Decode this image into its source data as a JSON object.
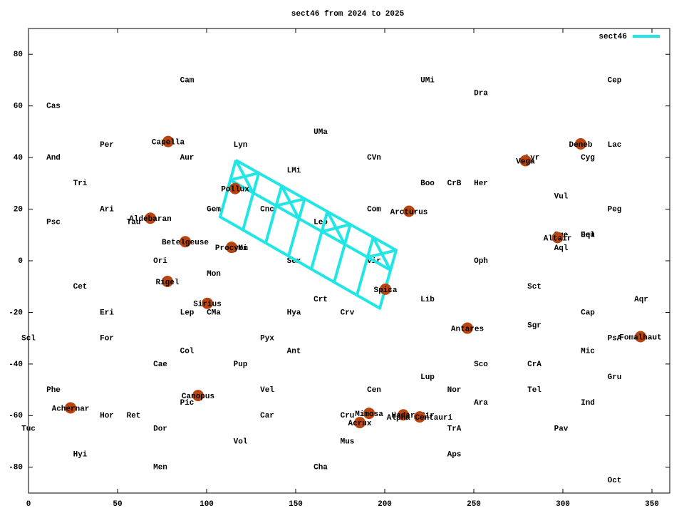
{
  "chart_data": {
    "type": "scatter",
    "title": "sect46 from 2024 to 2025",
    "xlim": [
      0,
      360
    ],
    "ylim": [
      -90,
      90
    ],
    "xticks": [
      0,
      50,
      100,
      150,
      200,
      250,
      300,
      350
    ],
    "yticks": [
      -80,
      -60,
      -40,
      -20,
      0,
      20,
      40,
      60,
      80
    ],
    "legend": "upper right",
    "series": [
      {
        "name": "sect46",
        "color": "#22e5e5",
        "x": [
          116.4,
          206.4,
          197.2,
          107.6,
          116.4,
          null,
          113.3,
          203.2,
          null,
          129.3,
          120.4,
          null,
          142.1,
          133.2,
          null,
          155.0,
          146.0,
          null,
          167.8,
          158.8,
          null,
          180.7,
          171.6,
          null,
          193.5,
          184.4,
          null,
          116.4,
          126.1,
          null,
          113.3,
          129.3,
          null,
          142.1,
          151.8,
          null,
          139.0,
          155.0,
          null,
          167.8,
          177.5,
          null,
          164.7,
          180.7,
          null,
          193.5,
          203.2,
          null,
          190.4,
          206.4
        ],
        "y": [
          39.0,
          4.1,
          -18.4,
          17.0,
          39.0,
          null,
          31.3,
          -3.6,
          null,
          34.0,
          11.9,
          null,
          29.0,
          6.9,
          null,
          24.0,
          1.8,
          null,
          19.1,
          -3.2,
          null,
          14.1,
          -8.3,
          null,
          9.1,
          -13.3,
          null,
          39.0,
          26.3,
          null,
          31.3,
          34.0,
          null,
          29.0,
          16.3,
          null,
          21.3,
          24.0,
          null,
          19.1,
          6.4,
          null,
          11.3,
          14.1,
          null,
          9.1,
          -3.6,
          null,
          1.4,
          4.1
        ]
      }
    ],
    "star_color": "#b8440f",
    "stars": [
      {
        "name": "Capella",
        "x": 78.4,
        "y": 46.2
      },
      {
        "name": "Deneb",
        "x": 310,
        "y": 45.3
      },
      {
        "name": "Vega",
        "x": 279,
        "y": 38.8
      },
      {
        "name": "Pollux",
        "x": 116,
        "y": 28
      },
      {
        "name": "Arcturus",
        "x": 213.6,
        "y": 19.2
      },
      {
        "name": "Aldebaran",
        "x": 68.4,
        "y": 16.5
      },
      {
        "name": "Altair",
        "x": 297,
        "y": 9
      },
      {
        "name": "Betelgeuse",
        "x": 88,
        "y": 7.4
      },
      {
        "name": "Procyon",
        "x": 114,
        "y": 5.2
      },
      {
        "name": "Rigel",
        "x": 78,
        "y": -8
      },
      {
        "name": "Spica",
        "x": 200.4,
        "y": -11
      },
      {
        "name": "Sirius",
        "x": 100.4,
        "y": -16.5
      },
      {
        "name": "Antares",
        "x": 246.4,
        "y": -26.1
      },
      {
        "name": "Fomalhaut",
        "x": 343.6,
        "y": -29.4
      },
      {
        "name": "Canopus",
        "x": 95.2,
        "y": -52.2
      },
      {
        "name": "Achernar",
        "x": 23.6,
        "y": -57
      },
      {
        "name": "Mimosa",
        "x": 191.2,
        "y": -59.1
      },
      {
        "name": "Hadar",
        "x": 210.4,
        "y": -59.7
      },
      {
        "name": "Alpha Centauri",
        "x": 219.6,
        "y": -60.5
      },
      {
        "name": "Acrux",
        "x": 186,
        "y": -62.7
      }
    ],
    "labels": [
      {
        "text": "Cam",
        "x": 89,
        "y": 70
      },
      {
        "text": "UMi",
        "x": 224,
        "y": 70
      },
      {
        "text": "Cep",
        "x": 329,
        "y": 70
      },
      {
        "text": "Dra",
        "x": 254,
        "y": 65
      },
      {
        "text": "Cas",
        "x": 14,
        "y": 60
      },
      {
        "text": "UMa",
        "x": 164,
        "y": 50
      },
      {
        "text": "Per",
        "x": 44,
        "y": 45
      },
      {
        "text": "Lyn",
        "x": 119,
        "y": 45
      },
      {
        "text": "Lac",
        "x": 329,
        "y": 45
      },
      {
        "text": "And",
        "x": 14,
        "y": 40
      },
      {
        "text": "Aur",
        "x": 89,
        "y": 40
      },
      {
        "text": "CVn",
        "x": 194,
        "y": 40
      },
      {
        "text": "Lyr",
        "x": 283,
        "y": 40
      },
      {
        "text": "Cyg",
        "x": 314,
        "y": 40
      },
      {
        "text": "LMi",
        "x": 149,
        "y": 35
      },
      {
        "text": "Tri",
        "x": 29,
        "y": 30
      },
      {
        "text": "Boo",
        "x": 224,
        "y": 30
      },
      {
        "text": "CrB",
        "x": 239,
        "y": 30
      },
      {
        "text": "Her",
        "x": 254,
        "y": 30
      },
      {
        "text": "Vul",
        "x": 299,
        "y": 25
      },
      {
        "text": "Ari",
        "x": 44,
        "y": 20
      },
      {
        "text": "Gem",
        "x": 104,
        "y": 20
      },
      {
        "text": "Cnc",
        "x": 134,
        "y": 20
      },
      {
        "text": "Com",
        "x": 194,
        "y": 20
      },
      {
        "text": "Peg",
        "x": 329,
        "y": 20
      },
      {
        "text": "Psc",
        "x": 14,
        "y": 15
      },
      {
        "text": "Tau",
        "x": 59,
        "y": 15
      },
      {
        "text": "Leo",
        "x": 164,
        "y": 15
      },
      {
        "text": "Sge",
        "x": 299,
        "y": 10
      },
      {
        "text": "Del",
        "x": 314,
        "y": 10
      },
      {
        "text": "Equ",
        "x": 314,
        "y": 10
      },
      {
        "text": "Aql",
        "x": 299,
        "y": 5
      },
      {
        "text": "CMi",
        "x": 119,
        "y": 5
      },
      {
        "text": "Ori",
        "x": 74,
        "y": 0
      },
      {
        "text": "Sex",
        "x": 149,
        "y": 0
      },
      {
        "text": "Vir",
        "x": 194,
        "y": 0
      },
      {
        "text": "Oph",
        "x": 254,
        "y": 0
      },
      {
        "text": "Mon",
        "x": 104,
        "y": -5
      },
      {
        "text": "Cet",
        "x": 29,
        "y": -10
      },
      {
        "text": "Sct",
        "x": 284,
        "y": -10
      },
      {
        "text": "Crt",
        "x": 164,
        "y": -15
      },
      {
        "text": "Lib",
        "x": 224,
        "y": -15
      },
      {
        "text": "Aqr",
        "x": 344,
        "y": -15
      },
      {
        "text": "Eri",
        "x": 44,
        "y": -20
      },
      {
        "text": "Lep",
        "x": 89,
        "y": -20
      },
      {
        "text": "CMa",
        "x": 104,
        "y": -20
      },
      {
        "text": "Hya",
        "x": 149,
        "y": -20
      },
      {
        "text": "Crv",
        "x": 179,
        "y": -20
      },
      {
        "text": "Cap",
        "x": 314,
        "y": -20
      },
      {
        "text": "Sgr",
        "x": 284,
        "y": -25
      },
      {
        "text": "Scl",
        "x": 0,
        "y": -30
      },
      {
        "text": "For",
        "x": 44,
        "y": -30
      },
      {
        "text": "Pyx",
        "x": 134,
        "y": -30
      },
      {
        "text": "PsA",
        "x": 329,
        "y": -30
      },
      {
        "text": "Col",
        "x": 89,
        "y": -35
      },
      {
        "text": "Ant",
        "x": 149,
        "y": -35
      },
      {
        "text": "Mic",
        "x": 314,
        "y": -35
      },
      {
        "text": "Cae",
        "x": 74,
        "y": -40
      },
      {
        "text": "Pup",
        "x": 119,
        "y": -40
      },
      {
        "text": "Sco",
        "x": 254,
        "y": -40
      },
      {
        "text": "CrA",
        "x": 284,
        "y": -40
      },
      {
        "text": "Lup",
        "x": 224,
        "y": -45
      },
      {
        "text": "Gru",
        "x": 329,
        "y": -45
      },
      {
        "text": "Phe",
        "x": 14,
        "y": -50
      },
      {
        "text": "Vel",
        "x": 134,
        "y": -50
      },
      {
        "text": "Cen",
        "x": 194,
        "y": -50
      },
      {
        "text": "Nor",
        "x": 239,
        "y": -50
      },
      {
        "text": "Tel",
        "x": 284,
        "y": -50
      },
      {
        "text": "Pic",
        "x": 89,
        "y": -55
      },
      {
        "text": "Ara",
        "x": 254,
        "y": -55
      },
      {
        "text": "Ind",
        "x": 314,
        "y": -55
      },
      {
        "text": "Hor",
        "x": 44,
        "y": -60
      },
      {
        "text": "Ret",
        "x": 59,
        "y": -60
      },
      {
        "text": "Car",
        "x": 134,
        "y": -60
      },
      {
        "text": "Cru",
        "x": 179,
        "y": -60
      },
      {
        "text": "Cir",
        "x": 224,
        "y": -60
      },
      {
        "text": "Tuc",
        "x": 0,
        "y": -65
      },
      {
        "text": "Dor",
        "x": 74,
        "y": -65
      },
      {
        "text": "TrA",
        "x": 239,
        "y": -65
      },
      {
        "text": "Pav",
        "x": 299,
        "y": -65
      },
      {
        "text": "Vol",
        "x": 119,
        "y": -70
      },
      {
        "text": "Mus",
        "x": 179,
        "y": -70
      },
      {
        "text": "Hyi",
        "x": 29,
        "y": -75
      },
      {
        "text": "Aps",
        "x": 239,
        "y": -75
      },
      {
        "text": "Men",
        "x": 74,
        "y": -80
      },
      {
        "text": "Cha",
        "x": 164,
        "y": -80
      },
      {
        "text": "Oct",
        "x": 329,
        "y": -85
      }
    ]
  }
}
